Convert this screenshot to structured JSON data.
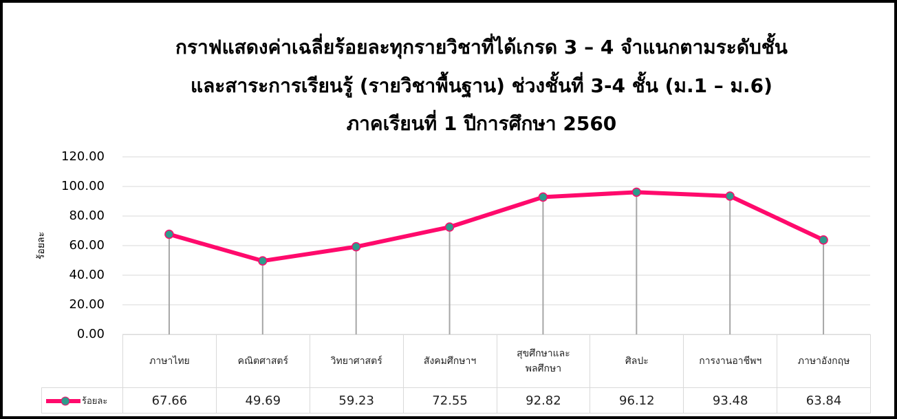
{
  "chart_data": {
    "type": "line",
    "title": [
      "กราฟแสดงค่าเฉลี่ยร้อยละทุกรายวิชาที่ได้เกรด 3 – 4 จำแนกตามระดับชั้น",
      "และสาระการเรียนรู้ (รายวิชาพื้นฐาน) ช่วงชั้นที่ 3-4 ชั้น (ม.1 – ม.6)",
      "ภาคเรียนที่ 1 ปีการศึกษา 2560"
    ],
    "y_label": "ร้อยละ",
    "categories": [
      "ภาษาไทย",
      "คณิตศาสตร์",
      "วิทยาศาสตร์",
      "สังคมศึกษาฯ",
      "สุขศึกษาและพลศึกษา",
      "ศิลปะ",
      "การงานอาชีพฯ",
      "ภาษาอังกฤษ"
    ],
    "series": [
      {
        "name": "ร้อยละ",
        "color": "#ff0a6c",
        "marker_color": "#2e9b8c",
        "values": [
          67.66,
          49.69,
          59.23,
          72.55,
          92.82,
          96.12,
          93.48,
          63.84
        ]
      }
    ],
    "ylim": [
      0,
      120
    ],
    "yticks": [
      {
        "value": 0,
        "label": "0.00"
      },
      {
        "value": 20,
        "label": "20.00"
      },
      {
        "value": 40,
        "label": "40.00"
      },
      {
        "value": 60,
        "label": "60.00"
      },
      {
        "value": 80,
        "label": "80.00"
      },
      {
        "value": 100,
        "label": "100.00"
      },
      {
        "value": 120,
        "label": "120.00"
      }
    ],
    "grid": true,
    "data_table": true
  }
}
